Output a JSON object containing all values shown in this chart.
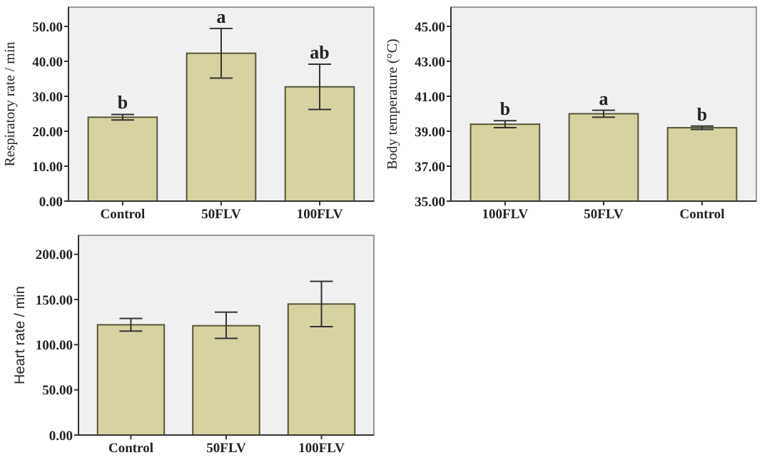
{
  "chart_data": [
    {
      "type": "bar",
      "ylabel": "Respiratory rate / min",
      "categories": [
        "Control",
        "50FLV",
        "100FLV"
      ],
      "values": [
        24,
        42.3,
        32.7
      ],
      "errors": [
        0.8,
        7.1,
        6.5
      ],
      "color": "#d6d3a0",
      "ylim": [
        0,
        55.5
      ],
      "yticks": [
        {
          "value": 0,
          "label": "0.00"
        },
        {
          "value": 10,
          "label": "10.00"
        },
        {
          "value": 20,
          "label": "20.00"
        },
        {
          "value": 30,
          "label": "30.00"
        },
        {
          "value": 40,
          "label": "40.00"
        },
        {
          "value": 50,
          "label": "50.00"
        }
      ],
      "grid": false,
      "annotations": [
        {
          "text": "b",
          "x": "Control",
          "y": 24.8
        },
        {
          "text": "a",
          "x": "50FLV",
          "y": 49.4
        },
        {
          "text": "ab",
          "x": "100FLV",
          "y": 39.2
        }
      ]
    },
    {
      "type": "bar",
      "ylabel": "Body temperature (°C)",
      "categories": [
        "100FLV",
        "50FLV",
        "Control"
      ],
      "values": [
        39.4,
        40,
        39.2
      ],
      "errors": [
        0.2,
        0.2,
        0.1
      ],
      "color": "#d6d3a0",
      "ylim": [
        35,
        46.1
      ],
      "yticks": [
        {
          "value": 35,
          "label": "35.00"
        },
        {
          "value": 37,
          "label": "37.00"
        },
        {
          "value": 39,
          "label": "39.00"
        },
        {
          "value": 41,
          "label": "41.00"
        },
        {
          "value": 43,
          "label": "43.00"
        },
        {
          "value": 45,
          "label": "45.00"
        }
      ],
      "grid": false,
      "annotations": [
        {
          "text": "b",
          "x": "100FLV",
          "y": 39.6
        },
        {
          "text": "a",
          "x": "50FLV",
          "y": 40.2
        },
        {
          "text": "b",
          "x": "Control",
          "y": 39.3
        }
      ]
    },
    {
      "type": "bar",
      "ylabel": "Heart rate / min",
      "categories": [
        "Control",
        "50FLV",
        "100FLV"
      ],
      "values": [
        122,
        121,
        145
      ],
      "errors": [
        7,
        [
          107,
          136
        ],
        25
      ],
      "color": "#d6d3a0",
      "ylim": [
        0,
        221
      ],
      "yticks": [
        {
          "value": 0,
          "label": "0.00"
        },
        {
          "value": 50,
          "label": "50.00"
        },
        {
          "value": 100,
          "label": "100.00"
        },
        {
          "value": 150,
          "label": "150.00"
        },
        {
          "value": 200,
          "label": "200.00"
        }
      ],
      "grid": false
    }
  ]
}
